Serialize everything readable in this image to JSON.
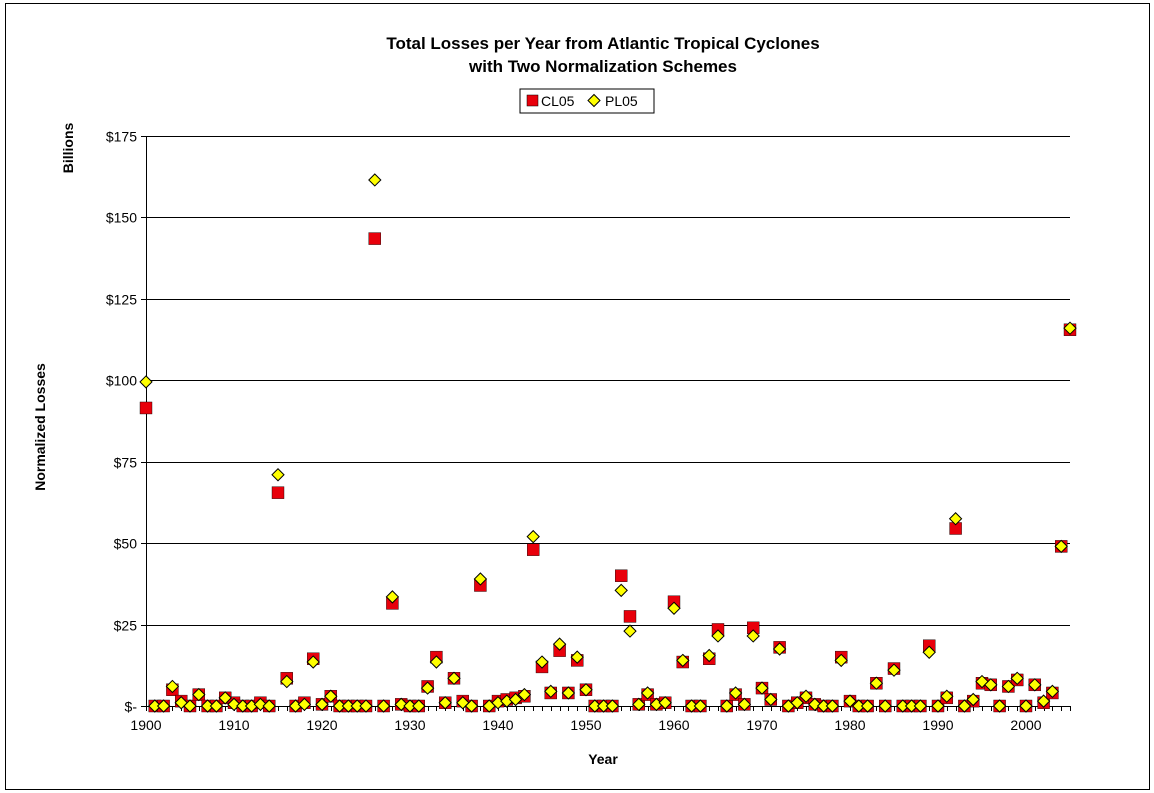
{
  "chart_data": {
    "type": "scatter",
    "title": [
      "Total Losses per Year from Atlantic Tropical Cyclones",
      "with Two Normalization Schemes"
    ],
    "xlabel": "Year",
    "ylabel": "Normalized Losses",
    "yunit_label": "Billions",
    "xlim": [
      1900,
      2005
    ],
    "ylim": [
      0,
      175
    ],
    "xticks": [
      1900,
      1910,
      1920,
      1930,
      1940,
      1950,
      1960,
      1970,
      1980,
      1990,
      2000
    ],
    "xtick_labels": [
      "1900",
      "1910",
      "1920",
      "1930",
      "1940",
      "1950",
      "1960",
      "1970",
      "1980",
      "1990",
      "2000"
    ],
    "yticks": [
      0,
      25,
      50,
      75,
      100,
      125,
      150,
      175
    ],
    "ytick_labels": [
      "$-",
      "$25",
      "$50",
      "$75",
      "$100",
      "$125",
      "$150",
      "$175"
    ],
    "grid": "horizontal",
    "legend_position": "top-center",
    "series": [
      {
        "name": "CL05",
        "marker": "square",
        "color": "#e8000b",
        "points": [
          [
            1900,
            91.5
          ],
          [
            1901,
            0
          ],
          [
            1902,
            0
          ],
          [
            1903,
            5
          ],
          [
            1904,
            1.5
          ],
          [
            1905,
            0
          ],
          [
            1906,
            3.5
          ],
          [
            1907,
            0
          ],
          [
            1908,
            0
          ],
          [
            1909,
            2.5
          ],
          [
            1910,
            1
          ],
          [
            1911,
            0
          ],
          [
            1912,
            0
          ],
          [
            1913,
            1
          ],
          [
            1914,
            0
          ],
          [
            1915,
            65.5
          ],
          [
            1916,
            8.5
          ],
          [
            1917,
            0
          ],
          [
            1918,
            1
          ],
          [
            1919,
            14.5
          ],
          [
            1920,
            0.5
          ],
          [
            1921,
            3
          ],
          [
            1922,
            0
          ],
          [
            1923,
            0
          ],
          [
            1924,
            0
          ],
          [
            1925,
            0
          ],
          [
            1926,
            143.5
          ],
          [
            1927,
            0
          ],
          [
            1928,
            31.5
          ],
          [
            1929,
            0.5
          ],
          [
            1930,
            0
          ],
          [
            1931,
            0
          ],
          [
            1932,
            6
          ],
          [
            1933,
            15
          ],
          [
            1934,
            1
          ],
          [
            1935,
            8.5
          ],
          [
            1936,
            1.5
          ],
          [
            1937,
            0
          ],
          [
            1938,
            37
          ],
          [
            1939,
            0
          ],
          [
            1940,
            1.5
          ],
          [
            1941,
            2
          ],
          [
            1942,
            2.5
          ],
          [
            1943,
            3
          ],
          [
            1944,
            48
          ],
          [
            1945,
            12
          ],
          [
            1946,
            4
          ],
          [
            1947,
            17
          ],
          [
            1948,
            4
          ],
          [
            1949,
            14
          ],
          [
            1950,
            5
          ],
          [
            1951,
            0
          ],
          [
            1952,
            0
          ],
          [
            1953,
            0
          ],
          [
            1954,
            40
          ],
          [
            1955,
            27.5
          ],
          [
            1956,
            0.5
          ],
          [
            1957,
            3.5
          ],
          [
            1958,
            0.5
          ],
          [
            1959,
            1
          ],
          [
            1960,
            32
          ],
          [
            1961,
            13.5
          ],
          [
            1962,
            0
          ],
          [
            1963,
            0
          ],
          [
            1964,
            14.5
          ],
          [
            1965,
            23.5
          ],
          [
            1966,
            0
          ],
          [
            1967,
            3.5
          ],
          [
            1968,
            0.5
          ],
          [
            1969,
            24
          ],
          [
            1970,
            5.5
          ],
          [
            1971,
            2
          ],
          [
            1972,
            18
          ],
          [
            1973,
            0
          ],
          [
            1974,
            1
          ],
          [
            1975,
            2.5
          ],
          [
            1976,
            0.5
          ],
          [
            1977,
            0
          ],
          [
            1978,
            0
          ],
          [
            1979,
            15
          ],
          [
            1980,
            1.5
          ],
          [
            1981,
            0
          ],
          [
            1982,
            0
          ],
          [
            1983,
            7
          ],
          [
            1984,
            0
          ],
          [
            1985,
            11.5
          ],
          [
            1986,
            0
          ],
          [
            1987,
            0
          ],
          [
            1988,
            0
          ],
          [
            1989,
            18.5
          ],
          [
            1990,
            0
          ],
          [
            1991,
            2.5
          ],
          [
            1992,
            54.5
          ],
          [
            1993,
            0
          ],
          [
            1994,
            1.5
          ],
          [
            1995,
            7
          ],
          [
            1996,
            6.5
          ],
          [
            1997,
            0
          ],
          [
            1998,
            6
          ],
          [
            1999,
            8
          ],
          [
            2000,
            0
          ],
          [
            2001,
            6.5
          ],
          [
            2002,
            1
          ],
          [
            2003,
            4
          ],
          [
            2004,
            49
          ],
          [
            2005,
            115.5
          ]
        ]
      },
      {
        "name": "PL05",
        "marker": "diamond",
        "color": "#ffff00",
        "points": [
          [
            1900,
            99.5
          ],
          [
            1901,
            0
          ],
          [
            1902,
            0
          ],
          [
            1903,
            6
          ],
          [
            1904,
            1
          ],
          [
            1905,
            0
          ],
          [
            1906,
            3.5
          ],
          [
            1907,
            0
          ],
          [
            1908,
            0
          ],
          [
            1909,
            2.5
          ],
          [
            1910,
            0.5
          ],
          [
            1911,
            0
          ],
          [
            1912,
            0
          ],
          [
            1913,
            0.5
          ],
          [
            1914,
            0
          ],
          [
            1915,
            71
          ],
          [
            1916,
            7.5
          ],
          [
            1917,
            0
          ],
          [
            1918,
            0.5
          ],
          [
            1919,
            13.5
          ],
          [
            1920,
            0.5
          ],
          [
            1921,
            3
          ],
          [
            1922,
            0
          ],
          [
            1923,
            0
          ],
          [
            1924,
            0
          ],
          [
            1925,
            0
          ],
          [
            1926,
            161.5
          ],
          [
            1927,
            0
          ],
          [
            1928,
            33.5
          ],
          [
            1929,
            0.5
          ],
          [
            1930,
            0
          ],
          [
            1931,
            0
          ],
          [
            1932,
            5.5
          ],
          [
            1933,
            13.5
          ],
          [
            1934,
            1
          ],
          [
            1935,
            8.5
          ],
          [
            1936,
            1
          ],
          [
            1937,
            0
          ],
          [
            1938,
            39
          ],
          [
            1939,
            0
          ],
          [
            1940,
            1
          ],
          [
            1941,
            1.5
          ],
          [
            1942,
            2
          ],
          [
            1943,
            3.5
          ],
          [
            1944,
            52
          ],
          [
            1945,
            13.5
          ],
          [
            1946,
            4.5
          ],
          [
            1947,
            19
          ],
          [
            1948,
            4
          ],
          [
            1949,
            15
          ],
          [
            1950,
            5
          ],
          [
            1951,
            0
          ],
          [
            1952,
            0
          ],
          [
            1953,
            0
          ],
          [
            1954,
            35.5
          ],
          [
            1955,
            23
          ],
          [
            1956,
            0.5
          ],
          [
            1957,
            4
          ],
          [
            1958,
            0.5
          ],
          [
            1959,
            1
          ],
          [
            1960,
            30
          ],
          [
            1961,
            14
          ],
          [
            1962,
            0
          ],
          [
            1963,
            0
          ],
          [
            1964,
            15.5
          ],
          [
            1965,
            21.5
          ],
          [
            1966,
            0
          ],
          [
            1967,
            4
          ],
          [
            1968,
            0.5
          ],
          [
            1969,
            21.5
          ],
          [
            1970,
            5.5
          ],
          [
            1971,
            2
          ],
          [
            1972,
            17.5
          ],
          [
            1973,
            0
          ],
          [
            1974,
            1
          ],
          [
            1975,
            3
          ],
          [
            1976,
            0.5
          ],
          [
            1977,
            0
          ],
          [
            1978,
            0
          ],
          [
            1979,
            14
          ],
          [
            1980,
            1.5
          ],
          [
            1981,
            0
          ],
          [
            1982,
            0
          ],
          [
            1983,
            7
          ],
          [
            1984,
            0
          ],
          [
            1985,
            11
          ],
          [
            1986,
            0
          ],
          [
            1987,
            0
          ],
          [
            1988,
            0
          ],
          [
            1989,
            16.5
          ],
          [
            1990,
            0
          ],
          [
            1991,
            3
          ],
          [
            1992,
            57.5
          ],
          [
            1993,
            0
          ],
          [
            1994,
            2
          ],
          [
            1995,
            7.5
          ],
          [
            1996,
            6.5
          ],
          [
            1997,
            0
          ],
          [
            1998,
            6
          ],
          [
            1999,
            8.5
          ],
          [
            2000,
            0
          ],
          [
            2001,
            6.5
          ],
          [
            2002,
            1.5
          ],
          [
            2003,
            4.5
          ],
          [
            2004,
            49
          ],
          [
            2005,
            116
          ]
        ]
      }
    ]
  }
}
